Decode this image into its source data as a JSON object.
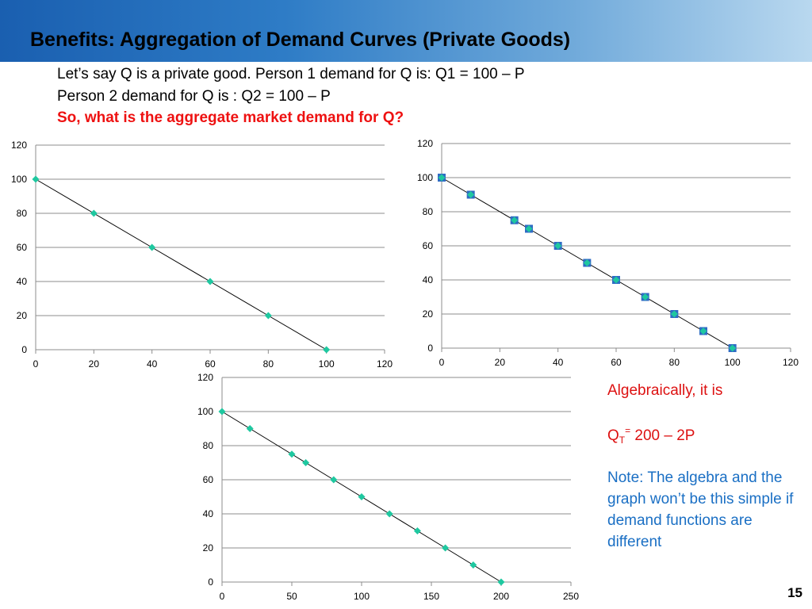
{
  "slide": {
    "title": "Benefits: Aggregation of Demand Curves (Private Goods)",
    "intro_line_1": "Let’s say Q is a private good. Person 1 demand for Q is: Q1 = 100 – P",
    "intro_line_2": "Person 2 demand for Q is : Q2 = 100 – P",
    "question": "So, what is the aggregate market demand for Q?",
    "algebra_label": "Algebraically, it is",
    "formula": {
      "base": "Q",
      "subscript": "T",
      "superscript": "=",
      "rhs": " 200 – 2P"
    },
    "note": "Note: The algebra and the graph won’t be this simple if demand functions are different",
    "page_number": "15"
  },
  "colors": {
    "header_gradient": [
      "#1a5fb0",
      "#2e7cc6",
      "#6fa9da",
      "#b9d8ef"
    ],
    "question_text": "#ee1111",
    "algebra_text": "#dd1111",
    "note_text": "#1a6fc4",
    "marker_fill": "#1fc8a0",
    "marker_square_fill": "#2f6cc4",
    "gridline": "#8c8c8c"
  },
  "chart_data": [
    {
      "type": "scatter",
      "marker": "diamond",
      "line": true,
      "grid": true,
      "xlim": [
        0,
        120
      ],
      "ylim": [
        0,
        120
      ],
      "x_ticks": [
        0,
        20,
        40,
        60,
        80,
        100,
        120
      ],
      "y_ticks": [
        0,
        20,
        40,
        60,
        80,
        100,
        120
      ],
      "series": [
        {
          "points": [
            [
              0,
              100
            ],
            [
              20,
              80
            ],
            [
              40,
              60
            ],
            [
              60,
              40
            ],
            [
              80,
              20
            ],
            [
              100,
              0
            ]
          ]
        }
      ]
    },
    {
      "type": "scatter",
      "marker": "diamond-over-square",
      "line": true,
      "grid": true,
      "xlim": [
        0,
        120
      ],
      "ylim": [
        0,
        120
      ],
      "x_ticks": [
        0,
        20,
        40,
        60,
        80,
        100,
        120
      ],
      "y_ticks": [
        0,
        20,
        40,
        60,
        80,
        100,
        120
      ],
      "series": [
        {
          "points": [
            [
              0,
              100
            ],
            [
              10,
              90
            ],
            [
              25,
              75
            ],
            [
              30,
              70
            ],
            [
              40,
              60
            ],
            [
              50,
              50
            ],
            [
              60,
              40
            ],
            [
              70,
              30
            ],
            [
              80,
              20
            ],
            [
              90,
              10
            ],
            [
              100,
              0
            ]
          ]
        }
      ]
    },
    {
      "type": "scatter",
      "marker": "diamond",
      "line": true,
      "grid": true,
      "xlim": [
        0,
        250
      ],
      "ylim": [
        0,
        120
      ],
      "x_ticks": [
        0,
        50,
        100,
        150,
        200,
        250
      ],
      "y_ticks": [
        0,
        20,
        40,
        60,
        80,
        100,
        120
      ],
      "series": [
        {
          "points": [
            [
              0,
              100
            ],
            [
              20,
              90
            ],
            [
              50,
              75
            ],
            [
              60,
              70
            ],
            [
              80,
              60
            ],
            [
              100,
              50
            ],
            [
              120,
              40
            ],
            [
              140,
              30
            ],
            [
              160,
              20
            ],
            [
              180,
              10
            ],
            [
              200,
              0
            ]
          ]
        }
      ]
    }
  ]
}
